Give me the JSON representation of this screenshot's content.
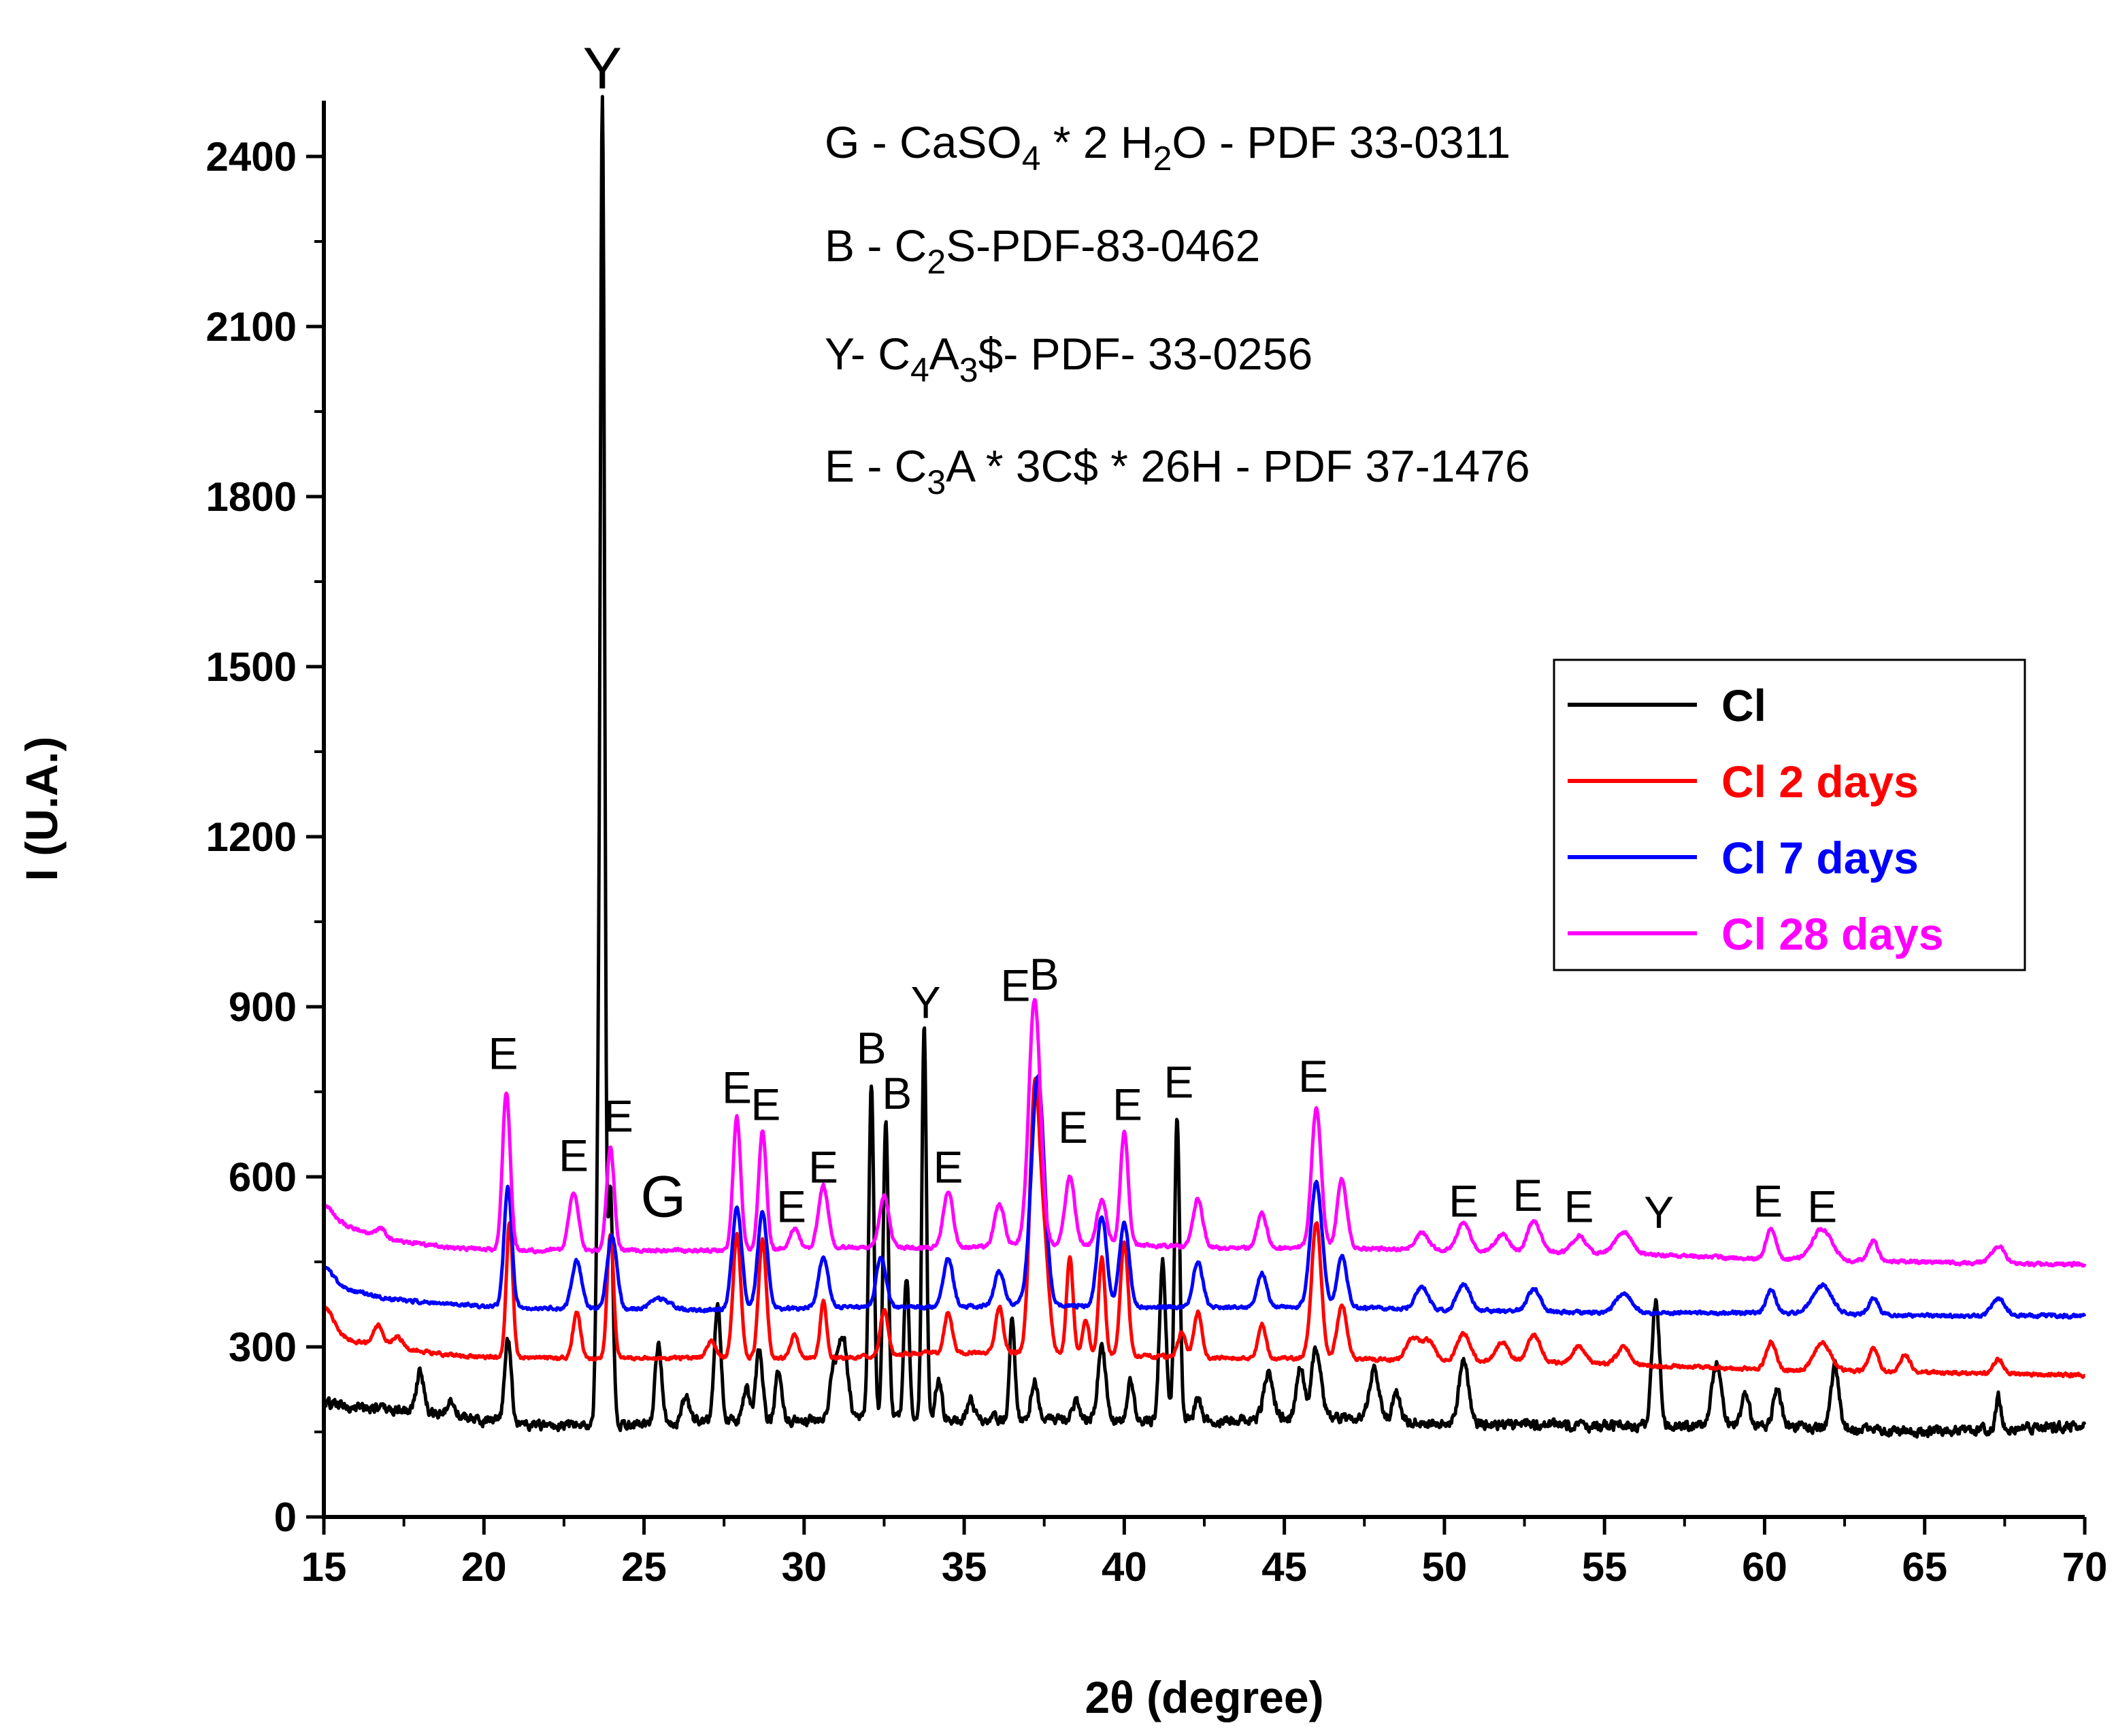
{
  "chart_data": {
    "type": "line",
    "title": "",
    "xlabel": "2θ (degree)",
    "ylabel": "I (U.A.)",
    "xlim": [
      15,
      70
    ],
    "ylim": [
      0,
      2500
    ],
    "xticks": [
      15,
      20,
      25,
      30,
      35,
      40,
      45,
      50,
      55,
      60,
      65,
      70
    ],
    "yticks": [
      0,
      300,
      600,
      900,
      1200,
      1500,
      1800,
      2100,
      2400
    ],
    "colors": {
      "axis": "#000000"
    },
    "annotations": {
      "phases": [
        {
          "prefix": "G - CaSO",
          "s1": "4",
          "mid": " * 2 H",
          "s2": "2",
          "suffix": "O - PDF 33-0311"
        },
        {
          "prefix": "B - C",
          "s1": "2",
          "mid": "S-PDF-83-0462",
          "s2": "",
          "suffix": ""
        },
        {
          "prefix": "Y- C",
          "s1": "4",
          "mid": "A",
          "s2": "3",
          "suffix": "$- PDF- 33-0256"
        },
        {
          "prefix": "E - C",
          "s1": "3",
          "mid": "A * 3C$ * 26H - PDF 37-1476",
          "s2": "",
          "suffix": ""
        }
      ],
      "peaks": [
        {
          "label": "Y",
          "x": 23.7,
          "y": 2520
        },
        {
          "label": "E",
          "x": 20.6,
          "y": 790
        },
        {
          "label": "E",
          "x": 22.8,
          "y": 610
        },
        {
          "label": "E",
          "x": 24.2,
          "y": 680
        },
        {
          "label": "G",
          "x": 25.6,
          "y": 530
        },
        {
          "label": "E",
          "x": 27.9,
          "y": 730
        },
        {
          "label": "E",
          "x": 28.8,
          "y": 700
        },
        {
          "label": "E",
          "x": 29.6,
          "y": 520
        },
        {
          "label": "E",
          "x": 30.6,
          "y": 590
        },
        {
          "label": "B",
          "x": 32.1,
          "y": 800
        },
        {
          "label": "B",
          "x": 32.9,
          "y": 720
        },
        {
          "label": "Y",
          "x": 33.8,
          "y": 880
        },
        {
          "label": "E",
          "x": 34.5,
          "y": 590
        },
        {
          "label": "E",
          "x": 36.6,
          "y": 910
        },
        {
          "label": "B",
          "x": 37.5,
          "y": 930
        },
        {
          "label": "E",
          "x": 38.4,
          "y": 660
        },
        {
          "label": "E",
          "x": 40.1,
          "y": 700
        },
        {
          "label": "E",
          "x": 41.7,
          "y": 740
        },
        {
          "label": "E",
          "x": 45.9,
          "y": 750
        },
        {
          "label": "E",
          "x": 50.6,
          "y": 530
        },
        {
          "label": "E",
          "x": 52.6,
          "y": 540
        },
        {
          "label": "E",
          "x": 54.2,
          "y": 520
        },
        {
          "label": "Y",
          "x": 56.7,
          "y": 510
        },
        {
          "label": "E",
          "x": 60.1,
          "y": 530
        },
        {
          "label": "E",
          "x": 61.8,
          "y": 520
        }
      ]
    },
    "legend": {
      "position": "top-right"
    },
    "series": [
      {
        "name": "Cl",
        "color": "#000000",
        "baseline": [
          [
            15,
            200
          ],
          [
            18,
            185
          ],
          [
            20,
            170
          ],
          [
            22,
            160
          ],
          [
            25,
            165
          ],
          [
            27,
            170
          ],
          [
            30,
            170
          ],
          [
            33,
            175
          ],
          [
            35,
            170
          ],
          [
            37,
            175
          ],
          [
            40,
            170
          ],
          [
            43,
            170
          ],
          [
            46,
            175
          ],
          [
            50,
            165
          ],
          [
            55,
            160
          ],
          [
            60,
            160
          ],
          [
            65,
            150
          ],
          [
            70,
            160
          ]
        ],
        "peaks": [
          [
            18,
            70,
            0.12
          ],
          [
            19,
            30,
            0.12
          ],
          [
            20.75,
            150,
            0.1
          ],
          [
            23.55,
            330,
            0.06
          ],
          [
            23.7,
            2330,
            0.07
          ],
          [
            23.95,
            420,
            0.08
          ],
          [
            25.45,
            140,
            0.1
          ],
          [
            26.3,
            45,
            0.1
          ],
          [
            27.3,
            210,
            0.1
          ],
          [
            28.2,
            55,
            0.1
          ],
          [
            28.6,
            130,
            0.1
          ],
          [
            29.2,
            90,
            0.1
          ],
          [
            30.9,
            70,
            0.1
          ],
          [
            31.2,
            150,
            0.15
          ],
          [
            32.1,
            590,
            0.08
          ],
          [
            32.55,
            520,
            0.08
          ],
          [
            33.2,
            250,
            0.08
          ],
          [
            33.75,
            700,
            0.07
          ],
          [
            34.2,
            70,
            0.1
          ],
          [
            35.2,
            35,
            0.1
          ],
          [
            36.5,
            180,
            0.08
          ],
          [
            37.2,
            70,
            0.1
          ],
          [
            38.5,
            35,
            0.1
          ],
          [
            39.3,
            130,
            0.12
          ],
          [
            40.2,
            70,
            0.1
          ],
          [
            41.2,
            280,
            0.1
          ],
          [
            41.65,
            535,
            0.08
          ],
          [
            42.3,
            40,
            0.1
          ],
          [
            44.5,
            80,
            0.15
          ],
          [
            45.5,
            90,
            0.12
          ],
          [
            46.0,
            120,
            0.15
          ],
          [
            47.8,
            90,
            0.15
          ],
          [
            48.5,
            50,
            0.12
          ],
          [
            50.6,
            110,
            0.15
          ],
          [
            56.6,
            220,
            0.12
          ],
          [
            58.5,
            110,
            0.15
          ],
          [
            59.4,
            55,
            0.12
          ],
          [
            60.4,
            70,
            0.12
          ],
          [
            62.2,
            110,
            0.12
          ],
          [
            67.3,
            60,
            0.08
          ]
        ]
      },
      {
        "name": "Cl 2 days",
        "color": "#ff0000",
        "baseline": [
          [
            15,
            320
          ],
          [
            17,
            300
          ],
          [
            19,
            285
          ],
          [
            21,
            280
          ],
          [
            25,
            280
          ],
          [
            28,
            280
          ],
          [
            31,
            280
          ],
          [
            34,
            290
          ],
          [
            37,
            290
          ],
          [
            40,
            285
          ],
          [
            43,
            280
          ],
          [
            46,
            280
          ],
          [
            50,
            275
          ],
          [
            55,
            270
          ],
          [
            60,
            260
          ],
          [
            65,
            255
          ],
          [
            70,
            250
          ]
        ],
        "peaks": [
          [
            15,
            50,
            0.3
          ],
          [
            16.7,
            35,
            0.15
          ],
          [
            17.3,
            20,
            0.15
          ],
          [
            20.8,
            240,
            0.1
          ],
          [
            22.9,
            80,
            0.12
          ],
          [
            23.95,
            220,
            0.1
          ],
          [
            27.1,
            30,
            0.15
          ],
          [
            27.9,
            220,
            0.12
          ],
          [
            28.7,
            210,
            0.12
          ],
          [
            29.7,
            40,
            0.12
          ],
          [
            30.6,
            100,
            0.1
          ],
          [
            32.5,
            80,
            0.12
          ],
          [
            34.5,
            70,
            0.12
          ],
          [
            36.1,
            80,
            0.12
          ],
          [
            37.2,
            455,
            0.15
          ],
          [
            37.5,
            180,
            0.15
          ],
          [
            38.3,
            170,
            0.1
          ],
          [
            38.8,
            60,
            0.1
          ],
          [
            39.3,
            170,
            0.1
          ],
          [
            40.0,
            200,
            0.12
          ],
          [
            41.8,
            45,
            0.12
          ],
          [
            42.3,
            80,
            0.12
          ],
          [
            44.3,
            60,
            0.12
          ],
          [
            46.0,
            240,
            0.15
          ],
          [
            46.8,
            95,
            0.15
          ],
          [
            49.0,
            40,
            0.2
          ],
          [
            49.5,
            35,
            0.2
          ],
          [
            50.6,
            50,
            0.2
          ],
          [
            51.8,
            35,
            0.2
          ],
          [
            52.8,
            50,
            0.2
          ],
          [
            54.2,
            30,
            0.2
          ],
          [
            55.6,
            30,
            0.2
          ],
          [
            60.2,
            50,
            0.15
          ],
          [
            61.8,
            50,
            0.25
          ],
          [
            63.4,
            40,
            0.15
          ],
          [
            64.4,
            30,
            0.15
          ],
          [
            67.3,
            25,
            0.15
          ]
        ]
      },
      {
        "name": "Cl 7 days",
        "color": "#0000ff",
        "baseline": [
          [
            15,
            410
          ],
          [
            17,
            385
          ],
          [
            19,
            375
          ],
          [
            21,
            370
          ],
          [
            25,
            365
          ],
          [
            28,
            365
          ],
          [
            31,
            370
          ],
          [
            34,
            370
          ],
          [
            37,
            375
          ],
          [
            40,
            370
          ],
          [
            43,
            370
          ],
          [
            46,
            370
          ],
          [
            50,
            365
          ],
          [
            55,
            360
          ],
          [
            60,
            360
          ],
          [
            65,
            355
          ],
          [
            70,
            355
          ]
        ],
        "peaks": [
          [
            15,
            30,
            0.3
          ],
          [
            20.75,
            210,
            0.12
          ],
          [
            22.9,
            85,
            0.15
          ],
          [
            24.0,
            130,
            0.15
          ],
          [
            25.5,
            20,
            0.3
          ],
          [
            27.9,
            180,
            0.15
          ],
          [
            28.7,
            170,
            0.15
          ],
          [
            30.6,
            90,
            0.15
          ],
          [
            32.4,
            90,
            0.15
          ],
          [
            34.5,
            85,
            0.15
          ],
          [
            36.1,
            60,
            0.15
          ],
          [
            37.3,
            405,
            0.2
          ],
          [
            39.3,
            160,
            0.15
          ],
          [
            40.0,
            150,
            0.15
          ],
          [
            42.3,
            80,
            0.15
          ],
          [
            44.3,
            60,
            0.15
          ],
          [
            46.0,
            220,
            0.18
          ],
          [
            46.8,
            90,
            0.15
          ],
          [
            49.3,
            40,
            0.2
          ],
          [
            50.6,
            45,
            0.2
          ],
          [
            52.8,
            40,
            0.2
          ],
          [
            55.6,
            35,
            0.25
          ],
          [
            60.2,
            40,
            0.15
          ],
          [
            61.8,
            50,
            0.3
          ],
          [
            63.4,
            30,
            0.15
          ],
          [
            67.3,
            30,
            0.2
          ]
        ]
      },
      {
        "name": "Cl 28 days",
        "color": "#ff00ff",
        "baseline": [
          [
            15,
            525
          ],
          [
            17,
            490
          ],
          [
            19,
            475
          ],
          [
            21,
            470
          ],
          [
            25,
            470
          ],
          [
            28,
            470
          ],
          [
            31,
            475
          ],
          [
            34,
            475
          ],
          [
            37,
            480
          ],
          [
            40,
            480
          ],
          [
            43,
            475
          ],
          [
            46,
            475
          ],
          [
            50,
            470
          ],
          [
            55,
            465
          ],
          [
            60,
            455
          ],
          [
            65,
            450
          ],
          [
            70,
            445
          ]
        ],
        "peaks": [
          [
            15,
            25,
            0.3
          ],
          [
            16.8,
            15,
            0.15
          ],
          [
            20.7,
            280,
            0.12
          ],
          [
            22.8,
            100,
            0.15
          ],
          [
            23.95,
            180,
            0.12
          ],
          [
            27.9,
            235,
            0.12
          ],
          [
            28.7,
            210,
            0.12
          ],
          [
            29.7,
            35,
            0.15
          ],
          [
            30.6,
            110,
            0.15
          ],
          [
            32.5,
            90,
            0.15
          ],
          [
            34.5,
            100,
            0.15
          ],
          [
            36.1,
            75,
            0.15
          ],
          [
            37.2,
            435,
            0.18
          ],
          [
            38.3,
            120,
            0.15
          ],
          [
            39.3,
            80,
            0.15
          ],
          [
            40.0,
            200,
            0.12
          ],
          [
            42.3,
            85,
            0.15
          ],
          [
            44.3,
            60,
            0.15
          ],
          [
            46.0,
            245,
            0.15
          ],
          [
            46.8,
            120,
            0.15
          ],
          [
            49.3,
            30,
            0.2
          ],
          [
            50.6,
            50,
            0.2
          ],
          [
            51.8,
            30,
            0.2
          ],
          [
            52.8,
            55,
            0.2
          ],
          [
            54.2,
            30,
            0.2
          ],
          [
            55.6,
            40,
            0.25
          ],
          [
            60.2,
            55,
            0.15
          ],
          [
            61.8,
            55,
            0.3
          ],
          [
            63.4,
            35,
            0.15
          ],
          [
            67.3,
            30,
            0.2
          ]
        ]
      }
    ]
  }
}
